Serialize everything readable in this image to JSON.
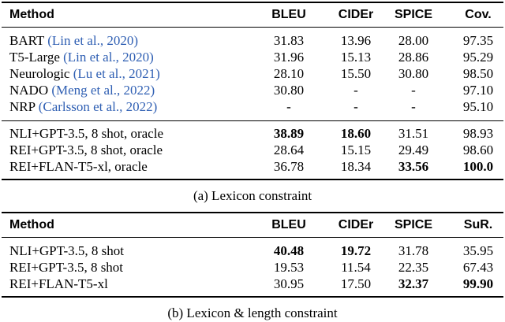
{
  "tables": [
    {
      "header": [
        "Method",
        "BLEU",
        "CIDEr",
        "SPICE",
        "Cov."
      ],
      "groups": [
        [
          {
            "method": "BART",
            "citation": "(Lin et al., 2020)",
            "cells": [
              "31.83",
              "13.96",
              "28.00",
              "97.35"
            ],
            "bold": [
              false,
              false,
              false,
              false
            ]
          },
          {
            "method": "T5-Large",
            "citation": "(Lin et al., 2020)",
            "cells": [
              "31.96",
              "15.13",
              "28.86",
              "95.29"
            ],
            "bold": [
              false,
              false,
              false,
              false
            ]
          },
          {
            "method": "Neurologic",
            "citation": "(Lu et al., 2021)",
            "cells": [
              "28.10",
              "15.50",
              "30.80",
              "98.50"
            ],
            "bold": [
              false,
              false,
              false,
              false
            ]
          },
          {
            "method": "NADO",
            "citation": "(Meng et al., 2022)",
            "cells": [
              "30.80",
              "-",
              "-",
              "97.10"
            ],
            "bold": [
              false,
              false,
              false,
              false
            ]
          },
          {
            "method": "NRP",
            "citation": "(Carlsson et al., 2022)",
            "cells": [
              "-",
              "-",
              "-",
              "95.10"
            ],
            "bold": [
              false,
              false,
              false,
              false
            ]
          }
        ],
        [
          {
            "method": "NLI+GPT-3.5, 8 shot, oracle",
            "cells": [
              "38.89",
              "18.60",
              "31.51",
              "98.93"
            ],
            "bold": [
              true,
              true,
              false,
              false
            ]
          },
          {
            "method": "REI+GPT-3.5, 8 shot, oracle",
            "cells": [
              "28.64",
              "15.15",
              "29.49",
              "98.60"
            ],
            "bold": [
              false,
              false,
              false,
              false
            ]
          },
          {
            "method": "REI+FLAN-T5-xl, oracle",
            "cells": [
              "36.78",
              "18.34",
              "33.56",
              "100.0"
            ],
            "bold": [
              false,
              false,
              true,
              true
            ]
          }
        ]
      ],
      "caption": "(a) Lexicon constraint"
    },
    {
      "header": [
        "Method",
        "BLEU",
        "CIDEr",
        "SPICE",
        "SuR."
      ],
      "groups": [
        [
          {
            "method": "NLI+GPT-3.5, 8 shot",
            "cells": [
              "40.48",
              "19.72",
              "31.78",
              "35.95"
            ],
            "bold": [
              true,
              true,
              false,
              false
            ]
          },
          {
            "method": "REI+GPT-3.5, 8 shot",
            "cells": [
              "19.53",
              "11.54",
              "22.35",
              "67.43"
            ],
            "bold": [
              false,
              false,
              false,
              false
            ]
          },
          {
            "method": "REI+FLAN-T5-xl",
            "cells": [
              "30.95",
              "17.50",
              "32.37",
              "99.90"
            ],
            "bold": [
              false,
              false,
              true,
              true
            ]
          }
        ]
      ],
      "caption": "(b) Lexicon & length constraint"
    }
  ]
}
